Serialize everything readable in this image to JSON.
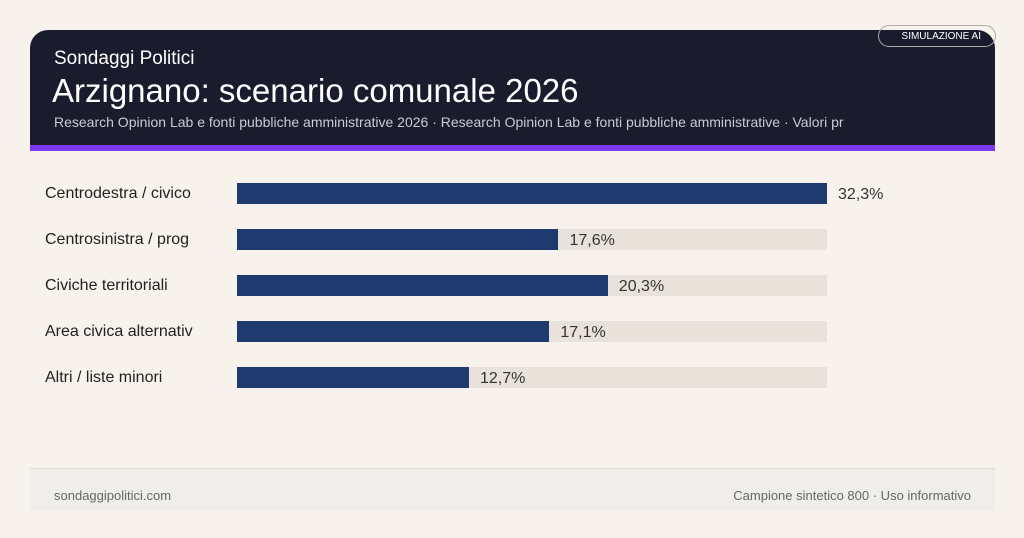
{
  "header": {
    "brand": "Sondaggi Politici",
    "title": "Arzignano: scenario comunale 2026",
    "subtitle": "Research Opinion Lab e fonti pubbliche amministrative 2026 · Research Opinion Lab e fonti pubbliche amministrative · Valori pr",
    "badge": "SIMULAZIONE AI"
  },
  "colors": {
    "bar": "#1e3a6e",
    "track": "#e8e2da",
    "accent": "#7c3aed",
    "header_bg": "#1b1b2e"
  },
  "chart_data": {
    "type": "bar",
    "orientation": "horizontal",
    "categories": [
      "Centrodestra / civico",
      "Centrosinistra / prog",
      "Civiche territoriali",
      "Area civica alternativ",
      "Altri / liste minori"
    ],
    "values": [
      32.3,
      17.6,
      20.3,
      17.1,
      12.7
    ],
    "value_labels": [
      "32,3%",
      "17,6%",
      "20,3%",
      "17,1%",
      "12,7%"
    ],
    "unit": "%",
    "xlim": [
      0,
      32.3
    ],
    "grid": false
  },
  "footer": {
    "left": "sondaggipolitici.com",
    "right": "Campione sintetico 800 · Uso informativo"
  }
}
